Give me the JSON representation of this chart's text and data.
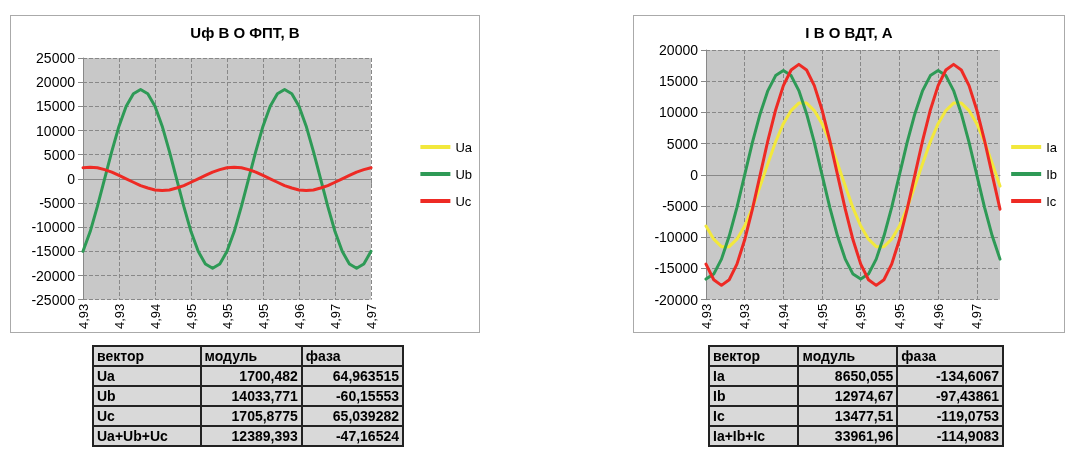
{
  "chart_data": [
    {
      "type": "line",
      "title": "Uф В О ФПТ, В",
      "categories": [
        "4,93",
        null,
        null,
        null,
        null,
        "4,93",
        null,
        null,
        null,
        null,
        "4,94",
        null,
        null,
        null,
        null,
        "4,95",
        null,
        null,
        null,
        null,
        "4,95",
        null,
        null,
        null,
        null,
        "4,95",
        null,
        null,
        null,
        null,
        "4,96",
        null,
        null,
        null,
        null,
        "4,97",
        null,
        null,
        null,
        null,
        "4,97"
      ],
      "series": [
        {
          "name": "Ua",
          "color": "#f2e83c",
          "values": [
            null,
            null,
            null,
            null,
            null,
            null,
            null,
            null,
            null,
            null,
            null,
            null,
            null,
            null,
            null,
            null,
            null,
            null,
            null,
            null,
            null,
            null,
            null,
            null,
            null,
            null,
            null,
            null,
            null,
            null,
            null,
            null,
            null,
            null,
            null,
            null,
            null,
            null,
            null,
            null,
            null
          ]
        },
        {
          "name": "Ub",
          "color": "#2e9a56",
          "values": [
            -15000,
            -10900,
            -5700,
            0,
            5700,
            10900,
            15000,
            17600,
            18500,
            17600,
            15000,
            10900,
            5700,
            0,
            -5700,
            -10900,
            -15000,
            -17600,
            -18500,
            -17600,
            -15000,
            -10900,
            -5700,
            0,
            5700,
            10900,
            15000,
            17600,
            18500,
            17600,
            15000,
            10900,
            5700,
            0,
            -5700,
            -10900,
            -15000,
            -17600,
            -18500,
            -17600,
            -15000
          ]
        },
        {
          "name": "Uc",
          "color": "#ee2a24",
          "values": [
            2300,
            2400,
            2300,
            1900,
            1400,
            700,
            0,
            -700,
            -1400,
            -1900,
            -2300,
            -2400,
            -2300,
            -1900,
            -1400,
            -700,
            0,
            700,
            1400,
            1900,
            2300,
            2400,
            2300,
            1900,
            1400,
            700,
            0,
            -700,
            -1400,
            -1900,
            -2300,
            -2400,
            -2300,
            -1900,
            -1400,
            -700,
            0,
            700,
            1400,
            1900,
            2300
          ]
        }
      ],
      "ylim": [
        -25000,
        25000
      ],
      "yticks": [
        -25000,
        -20000,
        -15000,
        -10000,
        -5000,
        0,
        5000,
        10000,
        15000,
        20000,
        25000
      ],
      "grid": true,
      "legend": "right",
      "marker": "none",
      "line_style": "solid"
    },
    {
      "type": "line",
      "title": "I В О ВДТ, А",
      "categories": [
        "4,93",
        null,
        null,
        null,
        null,
        "4,93",
        null,
        null,
        null,
        null,
        "4,94",
        null,
        null,
        null,
        null,
        "4,95",
        null,
        null,
        null,
        null,
        "4,95",
        null,
        null,
        null,
        null,
        "4,95",
        null,
        null,
        null,
        null,
        "4,96",
        null,
        null,
        null,
        null,
        "4,97",
        null,
        null,
        null
      ],
      "series": [
        {
          "name": "Ia",
          "color": "#f2e83c",
          "values": [
            -8200,
            -10300,
            -11500,
            -11500,
            -10300,
            -8200,
            -5300,
            -1800,
            1800,
            5300,
            8200,
            10300,
            11500,
            11500,
            10300,
            8200,
            5300,
            1800,
            -1800,
            -5300,
            -8200,
            -10300,
            -11500,
            -11500,
            -10300,
            -8200,
            -5300,
            -1800,
            1800,
            5300,
            8200,
            10300,
            11500,
            11500,
            10300,
            8200,
            5300,
            1800,
            -1800
          ]
        },
        {
          "name": "Ib",
          "color": "#2e9a56",
          "values": [
            -16700,
            -15900,
            -13500,
            -9800,
            -5200,
            0,
            5200,
            9800,
            13500,
            15900,
            16700,
            15900,
            13500,
            9800,
            5200,
            0,
            -5200,
            -9800,
            -13500,
            -15900,
            -16700,
            -15900,
            -13500,
            -9800,
            -5200,
            0,
            5200,
            9800,
            13500,
            15900,
            16700,
            15900,
            13500,
            9800,
            5200,
            0,
            -5200,
            -9800,
            -13500
          ]
        },
        {
          "name": "Ic",
          "color": "#ee2a24",
          "values": [
            -14300,
            -16800,
            -17700,
            -16800,
            -14300,
            -10400,
            -5500,
            0,
            5500,
            10400,
            14300,
            16800,
            17700,
            16800,
            14300,
            10400,
            5500,
            0,
            -5500,
            -10400,
            -14300,
            -16800,
            -17700,
            -16800,
            -14300,
            -10400,
            -5500,
            0,
            5500,
            10400,
            14300,
            16800,
            17700,
            16800,
            14300,
            10400,
            5500,
            0,
            -5500
          ]
        }
      ],
      "ylim": [
        -20000,
        20000
      ],
      "yticks": [
        -20000,
        -15000,
        -10000,
        -5000,
        0,
        5000,
        10000,
        15000,
        20000
      ],
      "grid": true,
      "legend": "right",
      "marker": "none",
      "line_style": "solid"
    },
    {
      "type": "other",
      "categories": [
        "вектор",
        "модуль",
        "фаза"
      ],
      "y_categories": [
        "Ua",
        "Ub",
        "Uc",
        "Ua+Ub+Uc"
      ],
      "cell_labels": [
        [
          "1700,482",
          "64,963515"
        ],
        [
          "14033,771",
          "-60,15553"
        ],
        [
          "1705,8775",
          "65,039282"
        ],
        [
          "12389,393",
          "-47,16524"
        ]
      ]
    },
    {
      "type": "other",
      "categories": [
        "вектор",
        "модуль",
        "фаза"
      ],
      "y_categories": [
        "Ia",
        "Ib",
        "Ic",
        "Ia+Ib+Ic"
      ],
      "cell_labels": [
        [
          "8650,055",
          "-134,6067"
        ],
        [
          "12974,67",
          "-97,43861"
        ],
        [
          "13477,51",
          "-119,0753"
        ],
        [
          "33961,96",
          "-114,9083"
        ]
      ]
    }
  ]
}
